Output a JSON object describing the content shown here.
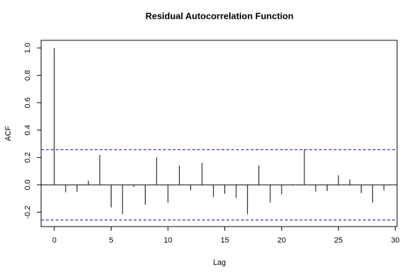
{
  "chart_data": {
    "type": "bar",
    "title": "Residual Autocorrelation Function",
    "xlabel": "Lag",
    "ylabel": "ACF",
    "x": [
      0,
      1,
      2,
      3,
      4,
      5,
      6,
      7,
      8,
      9,
      10,
      11,
      12,
      13,
      14,
      15,
      16,
      17,
      18,
      19,
      20,
      21,
      22,
      23,
      24,
      25,
      26,
      27,
      28,
      29
    ],
    "values": [
      1.0,
      -0.055,
      -0.05,
      0.03,
      0.22,
      -0.165,
      -0.215,
      -0.015,
      -0.145,
      0.2,
      -0.13,
      0.14,
      -0.04,
      0.16,
      -0.09,
      -0.065,
      -0.095,
      -0.215,
      0.14,
      -0.13,
      -0.07,
      0.005,
      0.26,
      -0.05,
      -0.045,
      0.07,
      0.04,
      -0.06,
      -0.13,
      -0.04
    ],
    "color": "#000000",
    "conf_limits": [
      0.257,
      -0.257
    ],
    "conf_color": "#0000cd",
    "xlim": [
      -1.16,
      30.16
    ],
    "ylim": [
      -0.305,
      1.056
    ],
    "xticks": [
      0,
      5,
      10,
      15,
      20,
      25,
      30
    ],
    "yticks": [
      {
        "value": -0.2,
        "label": "-0.2"
      },
      {
        "value": 0,
        "label": "0.0"
      },
      {
        "value": 0.2,
        "label": "0.2"
      },
      {
        "value": 0.4,
        "label": "0.4"
      },
      {
        "value": 0.6,
        "label": "0.6"
      },
      {
        "value": 0.8,
        "label": "0.8"
      },
      {
        "value": 1.0,
        "label": "1.0"
      }
    ]
  }
}
